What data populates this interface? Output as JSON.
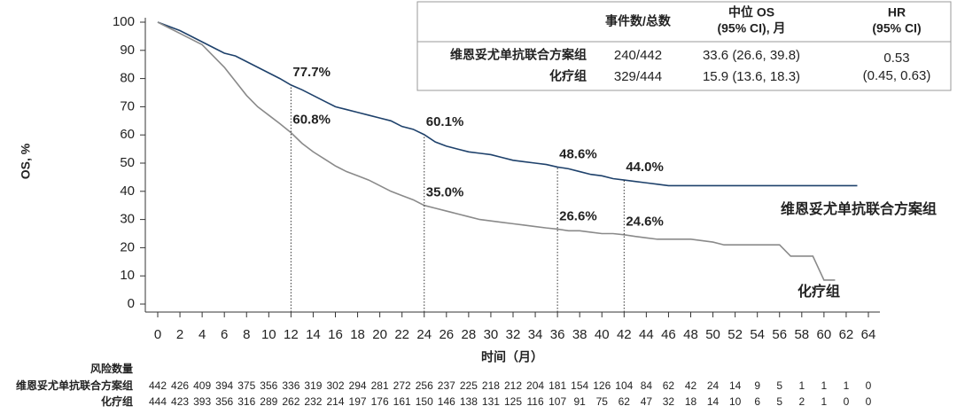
{
  "chart_data": {
    "type": "line",
    "x_label": "时间（月）",
    "y_label": "OS, %",
    "xlim": [
      0,
      64
    ],
    "ylim": [
      0,
      100
    ],
    "xticks": [
      0,
      2,
      4,
      6,
      8,
      10,
      12,
      14,
      16,
      18,
      20,
      22,
      24,
      26,
      28,
      30,
      32,
      34,
      36,
      38,
      40,
      42,
      44,
      46,
      48,
      50,
      52,
      54,
      56,
      58,
      60,
      62,
      64
    ],
    "yticks": [
      0,
      10,
      20,
      30,
      40,
      50,
      60,
      70,
      80,
      90,
      100
    ],
    "series": [
      {
        "name": "维恩妥尤单抗联合方案组",
        "color": "#1e416b",
        "x": [
          0,
          1,
          2,
          3,
          4,
          5,
          6,
          7,
          8,
          9,
          10,
          11,
          12,
          13,
          14,
          15,
          16,
          17,
          18,
          19,
          20,
          21,
          22,
          23,
          24,
          25,
          26,
          27,
          28,
          29,
          30,
          31,
          32,
          33,
          34,
          35,
          36,
          37,
          38,
          39,
          40,
          41,
          42,
          43,
          44,
          45,
          46,
          48,
          63
        ],
        "values": [
          100,
          98.5,
          97,
          95,
          93,
          91,
          89,
          88,
          86,
          84,
          82,
          80,
          77.7,
          76,
          74,
          72,
          70,
          69,
          68,
          67,
          66,
          65,
          63,
          62,
          60.1,
          57.5,
          56,
          55,
          54,
          53.5,
          53,
          52,
          51,
          50.5,
          50,
          49.5,
          48.6,
          48,
          47,
          46,
          45.5,
          44.5,
          44.0,
          43.5,
          43,
          42.5,
          42,
          42,
          42
        ],
        "at_risk": [
          442,
          426,
          409,
          394,
          375,
          356,
          336,
          319,
          302,
          294,
          281,
          272,
          256,
          237,
          225,
          218,
          212,
          204,
          181,
          154,
          126,
          104,
          84,
          62,
          42,
          24,
          14,
          9,
          5,
          1,
          1,
          1,
          0
        ]
      },
      {
        "name": "化疗组",
        "color": "#8a8a8a",
        "x": [
          0,
          1,
          2,
          3,
          4,
          5,
          6,
          7,
          8,
          9,
          10,
          11,
          12,
          13,
          14,
          15,
          16,
          17,
          18,
          19,
          20,
          21,
          22,
          23,
          24,
          25,
          26,
          27,
          28,
          29,
          30,
          31,
          32,
          33,
          34,
          35,
          36,
          37,
          38,
          39,
          40,
          41,
          42,
          43,
          44,
          45,
          48,
          50,
          51,
          56,
          57,
          59,
          60,
          61
        ],
        "values": [
          100,
          98,
          96,
          94,
          92,
          88,
          84,
          79,
          74,
          70,
          67,
          64,
          60.8,
          57,
          54,
          51.5,
          49,
          47,
          45.5,
          44,
          42,
          40,
          38.5,
          37,
          35.0,
          34,
          33,
          32,
          31,
          30,
          29.5,
          29,
          28.5,
          28,
          27.5,
          27,
          26.6,
          26,
          26,
          25.5,
          25,
          25,
          24.6,
          24,
          23.5,
          23,
          23,
          22,
          21,
          21,
          17,
          17,
          8.5,
          8.5
        ],
        "at_risk": [
          444,
          423,
          393,
          356,
          316,
          289,
          262,
          232,
          214,
          197,
          176,
          161,
          150,
          146,
          138,
          131,
          125,
          116,
          107,
          91,
          75,
          62,
          47,
          32,
          18,
          14,
          10,
          6,
          5,
          2,
          1,
          0,
          0
        ]
      }
    ],
    "annotations": [
      {
        "x": 12,
        "values": [
          77.7,
          60.8
        ],
        "value_labels": [
          "77.7%",
          "60.8%"
        ]
      },
      {
        "x": 24,
        "values": [
          60.1,
          35.0
        ],
        "value_labels": [
          "60.1%",
          "35.0%"
        ]
      },
      {
        "x": 36,
        "values": [
          48.6,
          26.6
        ],
        "value_labels": [
          "48.6%",
          "26.6%"
        ]
      },
      {
        "x": 42,
        "values": [
          44.0,
          24.6
        ],
        "value_labels": [
          "44.0%",
          "24.6%"
        ]
      }
    ],
    "risk_title": "风险数量",
    "table": {
      "columns": [
        [
          "事件数/总数"
        ],
        [
          "中位 OS",
          "(95% CI), 月"
        ],
        [
          "HR",
          "(95% CI)"
        ]
      ],
      "rows": [
        [
          "240/442",
          "33.6 (26.6, 39.8)"
        ],
        [
          "329/444",
          "15.9 (13.6, 18.3)"
        ]
      ],
      "hr": [
        "0.53",
        "(0.45, 0.63)"
      ]
    }
  }
}
